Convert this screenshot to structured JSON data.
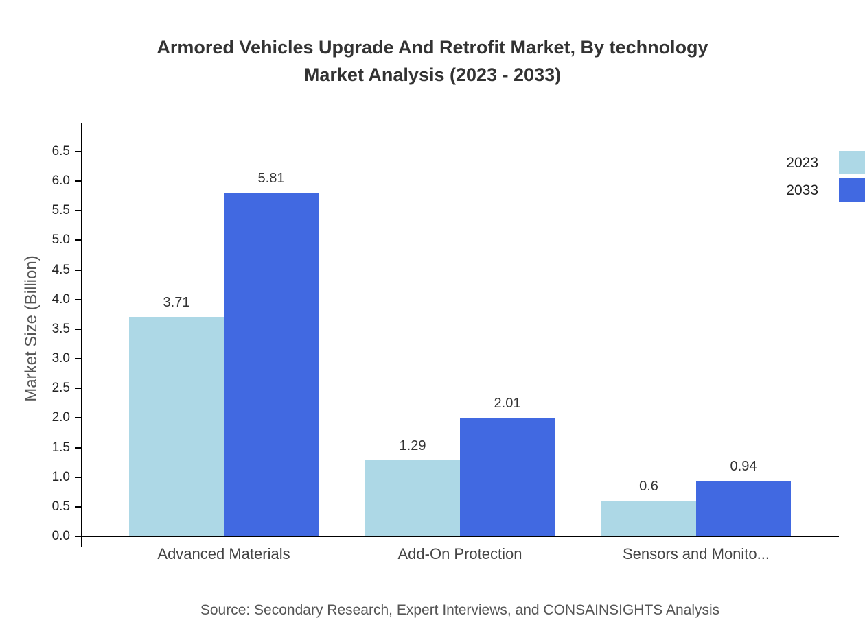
{
  "title": {
    "line1": "Armored Vehicles Upgrade And Retrofit Market, By technology",
    "line2": "Market Analysis (2023 - 2033)"
  },
  "source": "Source: Secondary Research, Expert Interviews, and CONSAINSIGHTS Analysis",
  "chart_data": {
    "type": "bar",
    "title": "Armored Vehicles Upgrade And Retrofit Market, By technology Market Analysis (2023 - 2033)",
    "categories": [
      "Advanced Materials",
      "Add-On Protection",
      "Sensors and Monito..."
    ],
    "series": [
      {
        "name": "2023",
        "color": "#add8e6",
        "values": [
          3.71,
          1.29,
          0.6
        ]
      },
      {
        "name": "2033",
        "color": "#4169e1",
        "values": [
          5.81,
          2.01,
          0.94
        ]
      }
    ],
    "xlabel": "",
    "ylabel": "Market Size (Billion)",
    "ylim": [
      0,
      6.5
    ],
    "ytick_step": 0.5,
    "grid": false,
    "legend_position": "top-right"
  }
}
